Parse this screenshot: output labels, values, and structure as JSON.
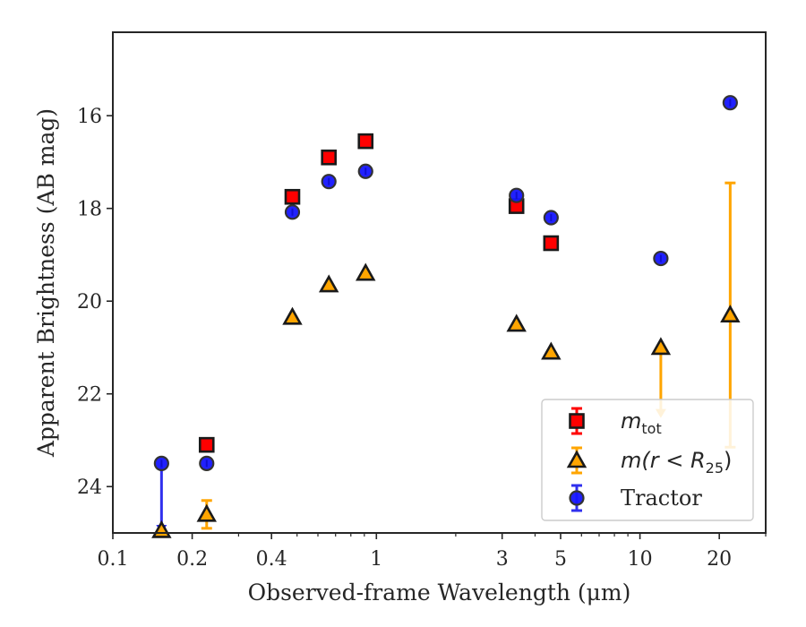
{
  "chart_data": {
    "type": "scatter",
    "title": "",
    "xlabel": "Observed-frame Wavelength (μm)",
    "ylabel": "Apparent Brightness (AB mag)",
    "xscale": "log",
    "xlim": [
      0.1,
      30
    ],
    "ylim": [
      25,
      14.2
    ],
    "x_ticks": [
      0.1,
      0.2,
      0.4,
      1,
      3,
      5,
      10,
      20
    ],
    "x_tick_labels": [
      "0.1",
      "0.2",
      "0.4",
      "1",
      "3",
      "5",
      "10",
      "20"
    ],
    "y_ticks": [
      16,
      18,
      20,
      22,
      24
    ],
    "y_tick_labels": [
      "16",
      "18",
      "20",
      "22",
      "24"
    ],
    "grid": false,
    "legend_position": "lower-right",
    "series": [
      {
        "name": "m_tot",
        "legend_main": "m",
        "legend_sub": "tot",
        "marker": "square",
        "color": "#ff0000",
        "edge_color": "#1a1a1a",
        "points": [
          {
            "x": 0.227,
            "y": 23.1
          },
          {
            "x": 0.48,
            "y": 17.75
          },
          {
            "x": 0.66,
            "y": 16.9
          },
          {
            "x": 0.91,
            "y": 16.55
          },
          {
            "x": 3.4,
            "y": 17.95
          },
          {
            "x": 4.6,
            "y": 18.75
          }
        ]
      },
      {
        "name": "m(r < R25)",
        "legend_main": "m(r < R",
        "legend_sub": "25",
        "legend_tail": ")",
        "marker": "triangle",
        "color": "#ffa500",
        "edge_color": "#1a1a1a",
        "points": [
          {
            "x": 0.153,
            "y": 24.95
          },
          {
            "x": 0.227,
            "y": 24.6,
            "err_low": 0.3,
            "err_high": 0.3
          },
          {
            "x": 0.48,
            "y": 20.35
          },
          {
            "x": 0.66,
            "y": 19.65
          },
          {
            "x": 0.91,
            "y": 19.4
          },
          {
            "x": 3.4,
            "y": 20.5
          },
          {
            "x": 4.6,
            "y": 21.1
          },
          {
            "x": 12.0,
            "y": 21.0,
            "upper_limit": true
          },
          {
            "x": 22.0,
            "y": 20.3,
            "err_low": 2.85,
            "err_high": 2.85
          }
        ]
      },
      {
        "name": "Tractor",
        "legend_main": "Tractor",
        "marker": "circle",
        "color": "#1515ff",
        "edge_color": "#333333",
        "points": [
          {
            "x": 0.153,
            "y": 23.5,
            "upper_limit": true
          },
          {
            "x": 0.227,
            "y": 23.5
          },
          {
            "x": 0.48,
            "y": 18.08
          },
          {
            "x": 0.66,
            "y": 17.42
          },
          {
            "x": 0.91,
            "y": 17.2
          },
          {
            "x": 3.4,
            "y": 17.72
          },
          {
            "x": 4.6,
            "y": 18.2
          },
          {
            "x": 12.0,
            "y": 19.08
          },
          {
            "x": 22.0,
            "y": 15.72
          }
        ]
      }
    ]
  }
}
